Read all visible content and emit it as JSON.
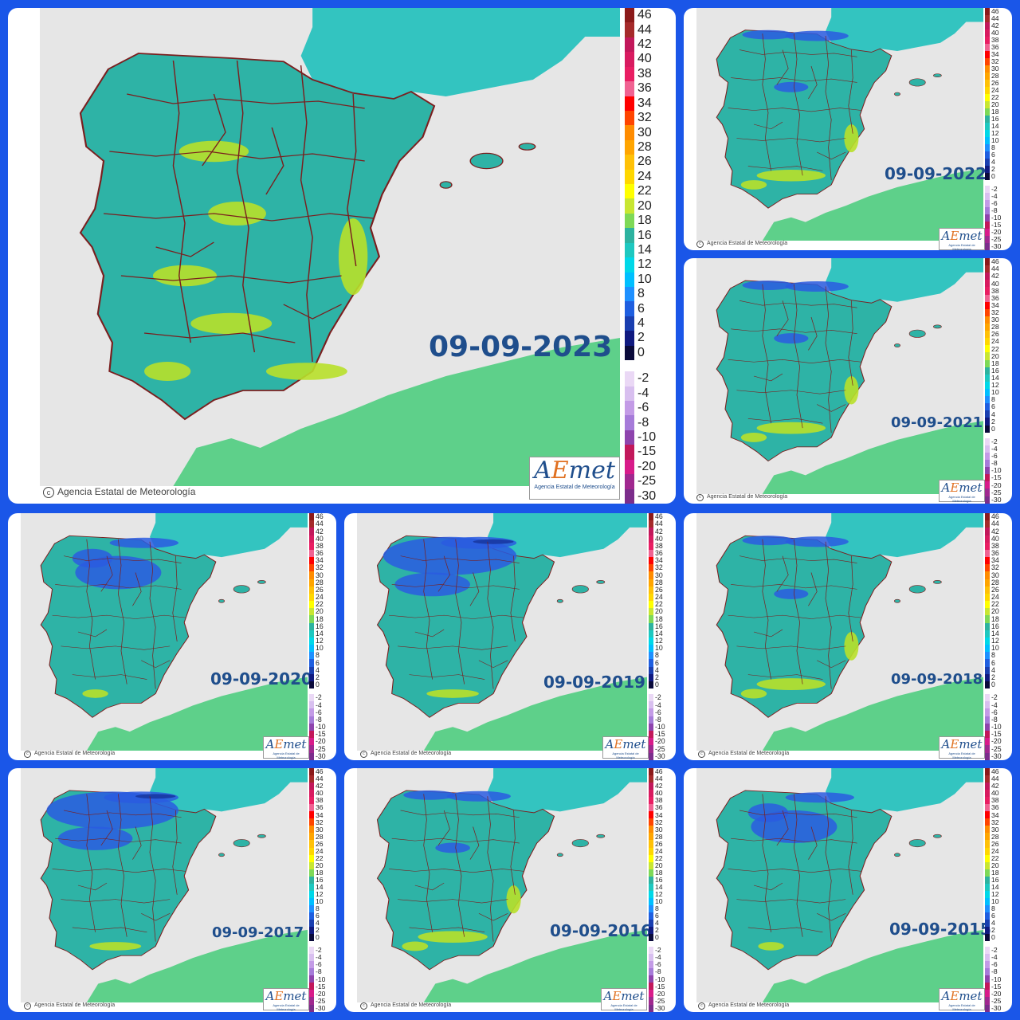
{
  "legend": {
    "positive_labels": [
      "46",
      "44",
      "42",
      "40",
      "38",
      "36",
      "34",
      "32",
      "30",
      "28",
      "26",
      "24",
      "22",
      "20",
      "18",
      "16",
      "14",
      "12",
      "10",
      "8",
      "6",
      "4",
      "2",
      "0"
    ],
    "positive_colors": [
      "#8b1a1a",
      "#a52a2a",
      "#c2185b",
      "#d81b60",
      "#e91e63",
      "#f06292",
      "#ff0000",
      "#ff4500",
      "#ff8c00",
      "#ffa500",
      "#ffc107",
      "#ffd700",
      "#ffff00",
      "#c8e632",
      "#7ed957",
      "#2db3a0",
      "#1ec8c0",
      "#00d8e8",
      "#00bfff",
      "#1e90ff",
      "#1f5fe0",
      "#1a3fb0",
      "#101a80",
      "#0a0a3a"
    ],
    "negative_labels": [
      "-2",
      "-4",
      "-6",
      "-8",
      "-10",
      "-15",
      "-20",
      "-25",
      "-30"
    ],
    "negative_colors": [
      "#ead8f5",
      "#d8bfef",
      "#c39be6",
      "#a67bd9",
      "#8e44ad",
      "#c2185b",
      "#d81b8a",
      "#a0288f",
      "#7b2d8b"
    ]
  },
  "copyright_text": "Agencia Estatal de Meteorología",
  "logo": {
    "word_a": "A",
    "word_e": "E",
    "word_rest": "met",
    "subtitle": "Agencia Estatal de Meteorología"
  },
  "panels": [
    {
      "id": "main",
      "date": "09-09-2023",
      "tone": "green"
    },
    {
      "id": "p2022",
      "date": "09-09-2022",
      "tone": "mixed"
    },
    {
      "id": "p2021",
      "date": "09-09-2021",
      "tone": "mixed"
    },
    {
      "id": "p2020",
      "date": "09-09-2020",
      "tone": "cool"
    },
    {
      "id": "p2019",
      "date": "09-09-2019",
      "tone": "cold"
    },
    {
      "id": "p2018",
      "date": "09-09-2018",
      "tone": "mixed"
    },
    {
      "id": "p2017",
      "date": "09-09-2017",
      "tone": "cold"
    },
    {
      "id": "p2016",
      "date": "09-09-2016",
      "tone": "mixed"
    },
    {
      "id": "p2015",
      "date": "09-09-2015",
      "tone": "cool"
    }
  ],
  "colors": {
    "background": "#1a56e8",
    "land": "#2eb3a6",
    "sea": "#e6e6e6",
    "france": "#33c4c0",
    "border": "#7a1f1f",
    "warm": "#b8e02a",
    "cold": "#2a5ce0",
    "cold_dark": "#1a3ca8",
    "africa": "#5ed08a",
    "date_text": "#1f4e8c"
  }
}
